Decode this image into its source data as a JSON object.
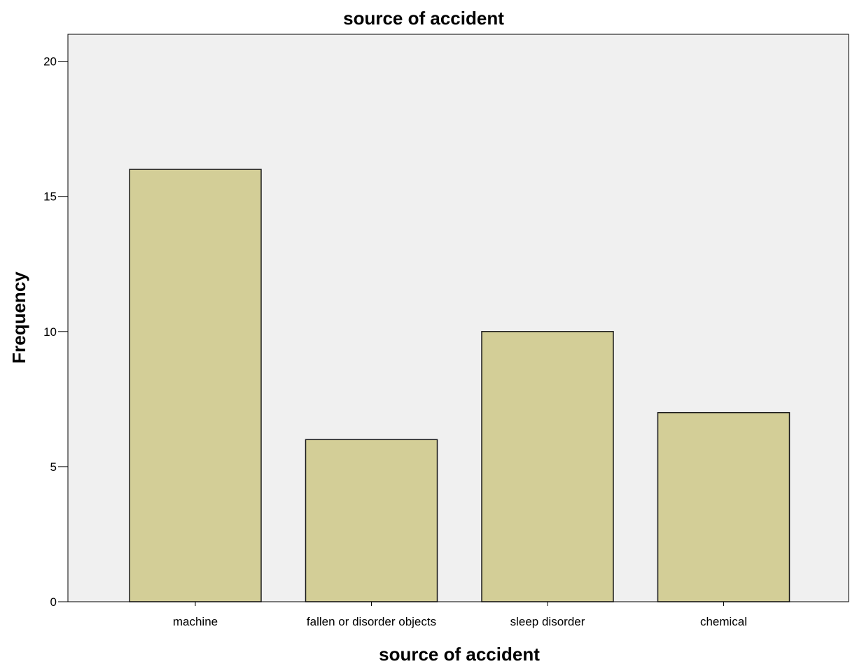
{
  "chart_data": {
    "type": "bar",
    "title": "source of accident",
    "xlabel": "source of accident",
    "ylabel": "Frequency",
    "categories": [
      "machine",
      "fallen or disorder objects",
      "sleep disorder",
      "chemical"
    ],
    "values": [
      16,
      6,
      10,
      7
    ],
    "ylim": [
      0,
      21
    ],
    "yticks": [
      "0",
      "5",
      "10",
      "15",
      "20"
    ],
    "grid": false,
    "legend": "none",
    "colors": {
      "plot_background": "#f0f0f0",
      "bar_fill": "#d3ce97",
      "bar_stroke": "#1a1a1a",
      "axis": "#000000"
    }
  }
}
